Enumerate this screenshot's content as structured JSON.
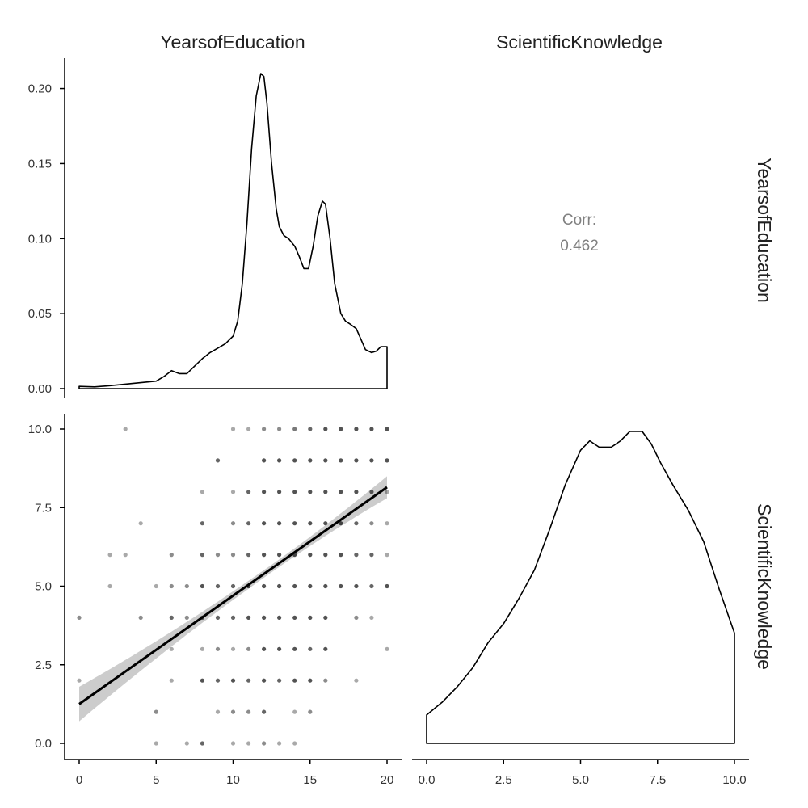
{
  "figure": {
    "variables": [
      "YearsofEducation",
      "ScientificKnowledge"
    ]
  },
  "chart_data": [
    {
      "panel": "density-YearsofEducation",
      "type": "area",
      "x_field": "YearsofEducation",
      "xlim": [
        0,
        20
      ],
      "ylim": [
        0,
        0.21
      ],
      "y_ticks": [
        "0.00",
        "0.05",
        "0.10",
        "0.15",
        "0.20"
      ],
      "y_tick_values": [
        0,
        0.05,
        0.1,
        0.15,
        0.2
      ],
      "x": [
        0,
        1,
        2,
        3,
        4,
        5,
        5.5,
        6,
        6.5,
        7,
        7.5,
        8,
        8.5,
        9,
        9.5,
        10,
        10.3,
        10.6,
        10.9,
        11.2,
        11.5,
        11.8,
        12,
        12.2,
        12.5,
        12.8,
        13,
        13.3,
        13.6,
        14,
        14.3,
        14.6,
        14.9,
        15.2,
        15.5,
        15.8,
        16,
        16.3,
        16.6,
        17,
        17.3,
        17.6,
        18,
        18.3,
        18.6,
        19,
        19.3,
        19.6,
        20
      ],
      "y": [
        0.0015,
        0.0012,
        0.002,
        0.003,
        0.004,
        0.005,
        0.008,
        0.012,
        0.01,
        0.01,
        0.015,
        0.02,
        0.024,
        0.027,
        0.03,
        0.035,
        0.045,
        0.07,
        0.11,
        0.16,
        0.195,
        0.21,
        0.208,
        0.19,
        0.15,
        0.12,
        0.108,
        0.102,
        0.1,
        0.095,
        0.088,
        0.08,
        0.08,
        0.095,
        0.115,
        0.125,
        0.123,
        0.1,
        0.07,
        0.05,
        0.045,
        0.043,
        0.04,
        0.033,
        0.026,
        0.024,
        0.025,
        0.028,
        0.028
      ]
    },
    {
      "panel": "correlation",
      "type": "table",
      "label": "Corr:",
      "value": "0.462"
    },
    {
      "panel": "scatter",
      "type": "scatter",
      "x_field": "YearsofEducation",
      "y_field": "ScientificKnowledge",
      "xlim": [
        0,
        20
      ],
      "ylim": [
        0,
        10
      ],
      "y_ticks": [
        "0.0",
        "2.5",
        "5.0",
        "7.5",
        "10.0"
      ],
      "y_tick_values": [
        0,
        2.5,
        5,
        7.5,
        10
      ],
      "x_ticks": [
        "0",
        "5",
        "10",
        "15",
        "20"
      ],
      "x_tick_values": [
        0,
        5,
        10,
        15,
        20
      ],
      "points": [
        [
          3,
          10,
          0.45
        ],
        [
          10,
          10,
          0.45
        ],
        [
          11,
          10,
          0.45
        ],
        [
          12,
          10,
          0.6
        ],
        [
          13,
          10,
          0.6
        ],
        [
          14,
          10,
          0.7
        ],
        [
          15,
          10,
          0.8
        ],
        [
          16,
          10,
          0.9
        ],
        [
          17,
          10,
          0.9
        ],
        [
          18,
          10,
          0.9
        ],
        [
          19,
          10,
          0.9
        ],
        [
          20,
          10,
          0.9
        ],
        [
          9,
          9,
          0.8
        ],
        [
          12,
          9,
          0.9
        ],
        [
          13,
          9,
          0.9
        ],
        [
          14,
          9,
          0.9
        ],
        [
          15,
          9,
          0.9
        ],
        [
          16,
          9,
          0.9
        ],
        [
          17,
          9,
          0.9
        ],
        [
          18,
          9,
          0.9
        ],
        [
          19,
          9,
          0.9
        ],
        [
          20,
          9,
          0.9
        ],
        [
          8,
          8,
          0.45
        ],
        [
          10,
          8,
          0.45
        ],
        [
          11,
          8,
          0.8
        ],
        [
          12,
          8,
          0.9
        ],
        [
          13,
          8,
          0.9
        ],
        [
          14,
          8,
          0.9
        ],
        [
          15,
          8,
          0.9
        ],
        [
          16,
          8,
          0.9
        ],
        [
          17,
          8,
          0.9
        ],
        [
          18,
          8,
          0.9
        ],
        [
          19,
          8,
          0.8
        ],
        [
          20,
          8,
          0.45
        ],
        [
          4,
          7,
          0.45
        ],
        [
          8,
          7,
          0.8
        ],
        [
          10,
          7,
          0.6
        ],
        [
          11,
          7,
          0.8
        ],
        [
          12,
          7,
          0.9
        ],
        [
          13,
          7,
          0.9
        ],
        [
          14,
          7,
          0.9
        ],
        [
          15,
          7,
          0.9
        ],
        [
          16,
          7,
          0.9
        ],
        [
          17,
          7,
          0.9
        ],
        [
          18,
          7,
          0.8
        ],
        [
          19,
          7,
          0.6
        ],
        [
          20,
          7,
          0.45
        ],
        [
          2,
          6,
          0.45
        ],
        [
          3,
          6,
          0.45
        ],
        [
          6,
          6,
          0.6
        ],
        [
          8,
          6,
          0.8
        ],
        [
          9,
          6,
          0.6
        ],
        [
          10,
          6,
          0.6
        ],
        [
          11,
          6,
          0.8
        ],
        [
          12,
          6,
          0.9
        ],
        [
          13,
          6,
          0.9
        ],
        [
          14,
          6,
          0.9
        ],
        [
          15,
          6,
          0.9
        ],
        [
          16,
          6,
          0.9
        ],
        [
          17,
          6,
          0.9
        ],
        [
          18,
          6,
          0.8
        ],
        [
          19,
          6,
          0.8
        ],
        [
          20,
          6,
          0.45
        ],
        [
          2,
          5,
          0.45
        ],
        [
          5,
          5,
          0.45
        ],
        [
          6,
          5,
          0.6
        ],
        [
          7,
          5,
          0.6
        ],
        [
          8,
          5,
          0.9
        ],
        [
          9,
          5,
          0.8
        ],
        [
          10,
          5,
          0.8
        ],
        [
          11,
          5,
          0.9
        ],
        [
          12,
          5,
          0.9
        ],
        [
          13,
          5,
          0.9
        ],
        [
          14,
          5,
          0.9
        ],
        [
          15,
          5,
          0.9
        ],
        [
          16,
          5,
          0.9
        ],
        [
          17,
          5,
          0.9
        ],
        [
          18,
          5,
          0.9
        ],
        [
          19,
          5,
          0.8
        ],
        [
          20,
          5,
          0.9
        ],
        [
          0,
          4,
          0.6
        ],
        [
          4,
          4,
          0.6
        ],
        [
          6,
          4,
          0.8
        ],
        [
          7,
          4,
          0.6
        ],
        [
          8,
          4,
          0.8
        ],
        [
          9,
          4,
          0.8
        ],
        [
          10,
          4,
          0.8
        ],
        [
          11,
          4,
          0.9
        ],
        [
          12,
          4,
          0.9
        ],
        [
          13,
          4,
          0.9
        ],
        [
          14,
          4,
          0.9
        ],
        [
          15,
          4,
          0.9
        ],
        [
          16,
          4,
          0.9
        ],
        [
          18,
          4,
          0.6
        ],
        [
          19,
          4,
          0.45
        ],
        [
          6,
          3,
          0.45
        ],
        [
          8,
          3,
          0.45
        ],
        [
          9,
          3,
          0.6
        ],
        [
          10,
          3,
          0.45
        ],
        [
          11,
          3,
          0.6
        ],
        [
          12,
          3,
          0.9
        ],
        [
          13,
          3,
          0.9
        ],
        [
          14,
          3,
          0.9
        ],
        [
          15,
          3,
          0.8
        ],
        [
          16,
          3,
          0.9
        ],
        [
          20,
          3,
          0.45
        ],
        [
          0,
          2,
          0.45
        ],
        [
          6,
          2,
          0.45
        ],
        [
          8,
          2,
          0.9
        ],
        [
          9,
          2,
          0.8
        ],
        [
          10,
          2,
          0.9
        ],
        [
          11,
          2,
          0.8
        ],
        [
          12,
          2,
          0.9
        ],
        [
          13,
          2,
          0.8
        ],
        [
          14,
          2,
          0.9
        ],
        [
          15,
          2,
          0.9
        ],
        [
          16,
          2,
          0.6
        ],
        [
          18,
          2,
          0.45
        ],
        [
          5,
          1,
          0.6
        ],
        [
          9,
          1,
          0.45
        ],
        [
          10,
          1,
          0.6
        ],
        [
          11,
          1,
          0.6
        ],
        [
          12,
          1,
          0.8
        ],
        [
          14,
          1,
          0.45
        ],
        [
          15,
          1,
          0.6
        ],
        [
          5,
          0,
          0.45
        ],
        [
          7,
          0,
          0.45
        ],
        [
          8,
          0,
          0.8
        ],
        [
          10,
          0,
          0.45
        ],
        [
          11,
          0,
          0.45
        ],
        [
          12,
          0,
          0.6
        ],
        [
          13,
          0,
          0.45
        ],
        [
          14,
          0,
          0.45
        ]
      ],
      "fit": {
        "x": [
          0,
          20
        ],
        "y": [
          1.25,
          8.15
        ],
        "ci_at_ends": [
          0.55,
          0.35
        ],
        "ci_at_center": 0.12,
        "center_x": 12.5
      }
    },
    {
      "panel": "density-ScientificKnowledge",
      "type": "area",
      "x_field": "ScientificKnowledge",
      "xlim": [
        0,
        10
      ],
      "x_ticks": [
        "0.0",
        "2.5",
        "5.0",
        "7.5",
        "10.0"
      ],
      "x_tick_values": [
        0,
        2.5,
        5,
        7.5,
        10
      ],
      "y_rel": true,
      "x": [
        0,
        0.5,
        1,
        1.5,
        2,
        2.5,
        3,
        3.5,
        4,
        4.5,
        5,
        5.3,
        5.6,
        6,
        6.3,
        6.6,
        7,
        7.3,
        7.6,
        8,
        8.5,
        9,
        9.5,
        10
      ],
      "y": [
        0.09,
        0.13,
        0.18,
        0.24,
        0.32,
        0.38,
        0.46,
        0.55,
        0.68,
        0.82,
        0.93,
        0.96,
        0.94,
        0.94,
        0.96,
        0.99,
        0.99,
        0.95,
        0.89,
        0.82,
        0.74,
        0.64,
        0.49,
        0.35
      ]
    }
  ]
}
